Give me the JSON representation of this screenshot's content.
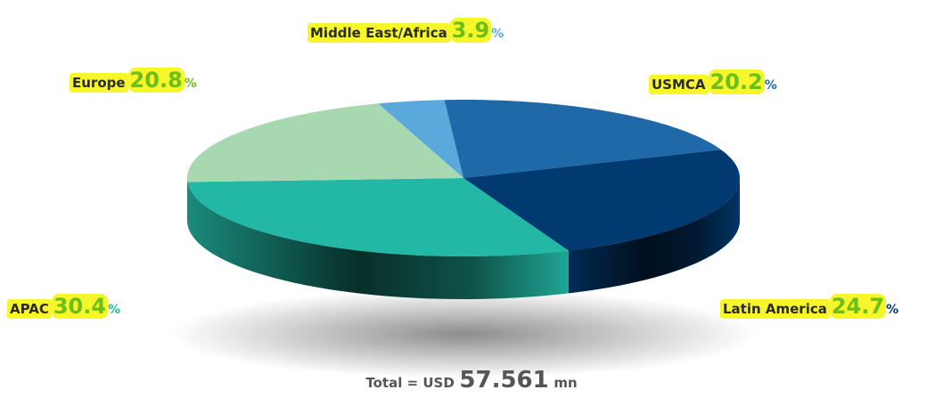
{
  "chart_data": {
    "type": "pie3d",
    "categories": [
      "Middle East/Africa",
      "USMCA",
      "Latin America",
      "APAC",
      "Europe"
    ],
    "values": [
      3.9,
      20.2,
      24.7,
      30.4,
      20.8
    ],
    "colors": [
      "#5aa8dc",
      "#1f69a8",
      "#003a70",
      "#22b8a5",
      "#a8d8b0"
    ],
    "unit": "%",
    "total": {
      "prefix": "Total = USD",
      "value": 57.561,
      "unit": "mn"
    }
  }
}
